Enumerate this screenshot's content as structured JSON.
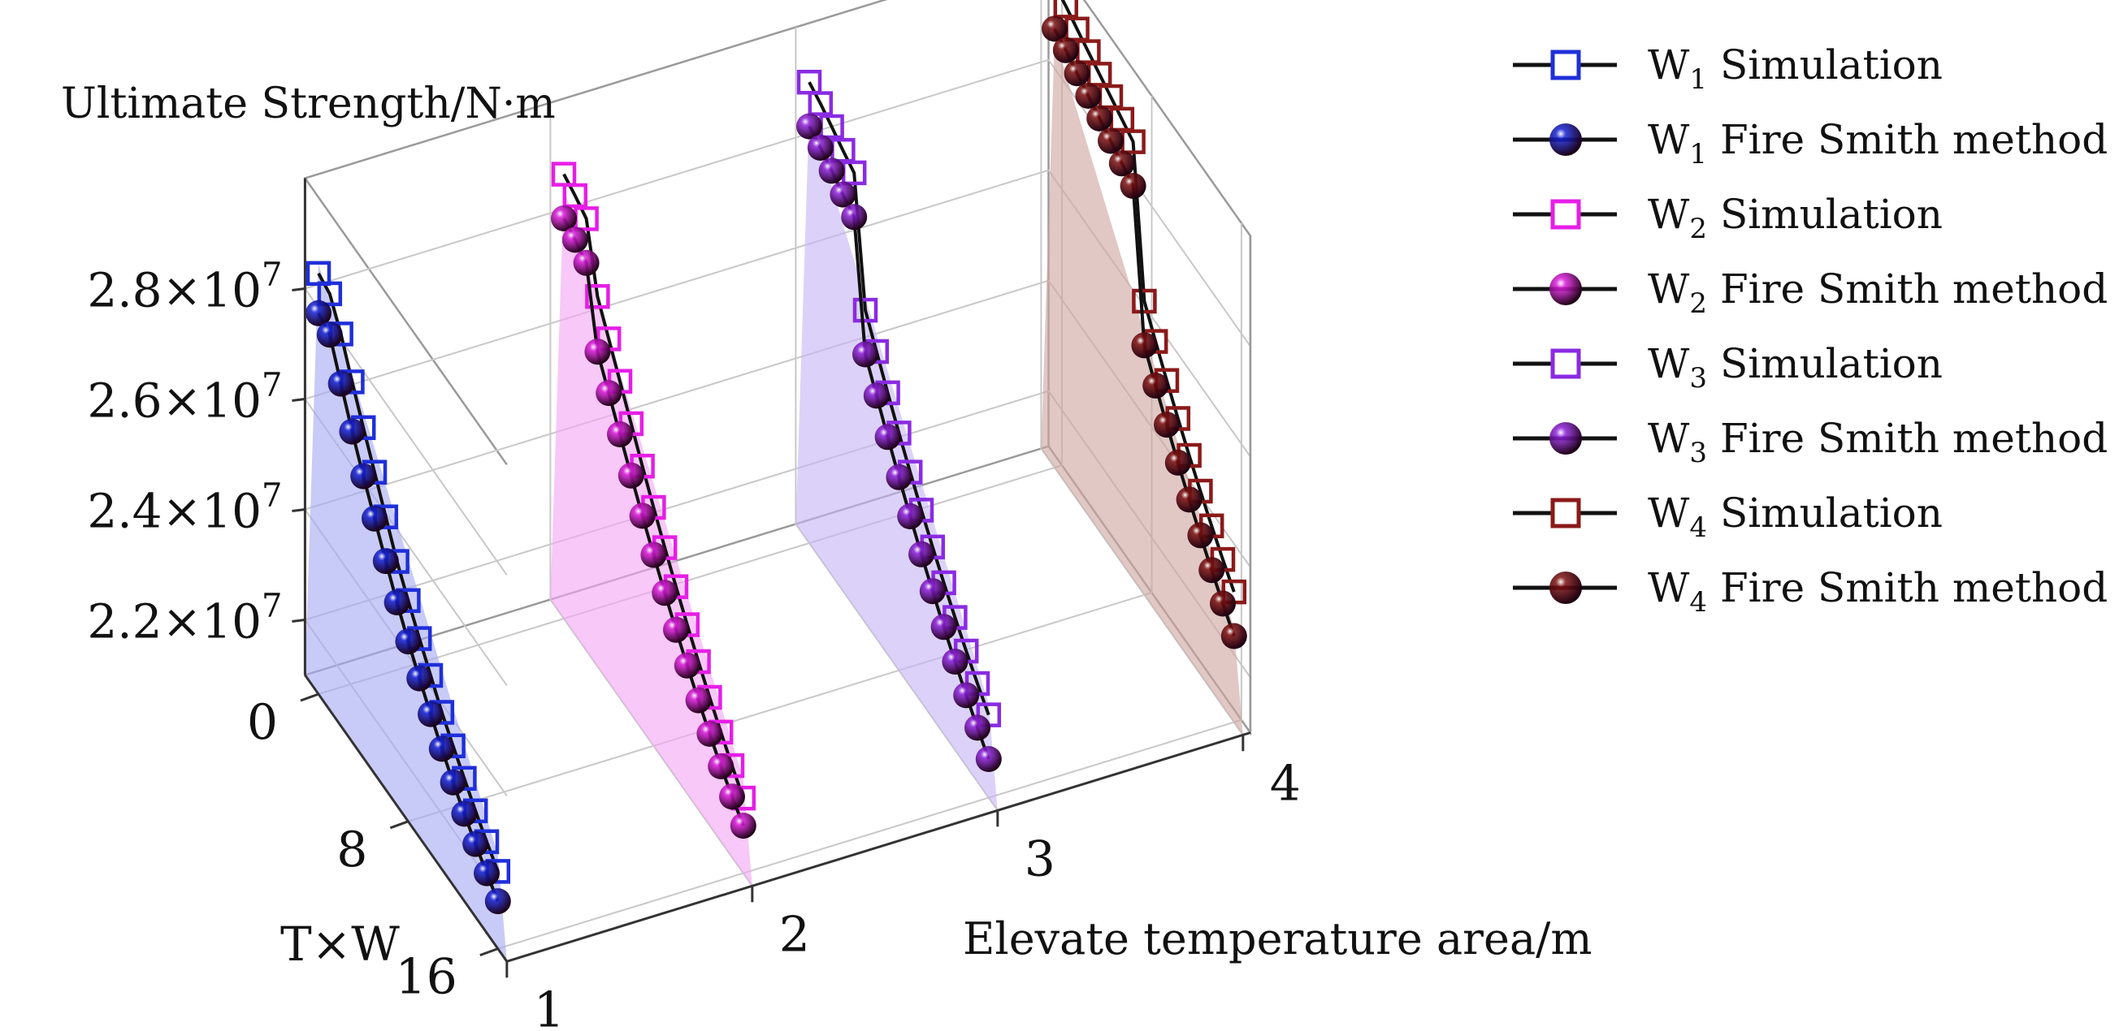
{
  "chart_data": {
    "type": "line",
    "projection": "3d",
    "z_label": "Ultimate Strength/N·m",
    "y_label": "T×W",
    "x_label": "Elevate temperature area/m",
    "z_ticks": [
      {
        "value": 22000000.0,
        "mantissa": "2.2×10",
        "exponent": "7"
      },
      {
        "value": 24000000.0,
        "mantissa": "2.4×10",
        "exponent": "7"
      },
      {
        "value": 26000000.0,
        "mantissa": "2.6×10",
        "exponent": "7"
      },
      {
        "value": 28000000.0,
        "mantissa": "2.8×10",
        "exponent": "7"
      }
    ],
    "y_ticks": [
      0,
      8,
      16
    ],
    "x_ticks": [
      1,
      2,
      3,
      4
    ],
    "z_range": [
      21000000.0,
      30000000.0
    ],
    "y_range": [
      0,
      16
    ],
    "x_range": [
      1,
      4
    ],
    "series": [
      {
        "name": "W1 Simulation",
        "label_main": "W",
        "label_sub": "1",
        "label_rest": " Simulation",
        "marker": "square",
        "color": "#1f2fd9",
        "plane_color": "#a7aaf2",
        "x": 1,
        "t": [
          0,
          1,
          2,
          3,
          4,
          5,
          6,
          7,
          8,
          9,
          10,
          11,
          12,
          13,
          14,
          15,
          16
        ],
        "values": [
          28.62,
          28.54,
          28.1,
          27.52,
          26.98,
          26.46,
          25.94,
          25.42,
          25.0,
          24.6,
          24.22,
          23.84,
          23.52,
          23.22,
          22.92,
          22.65,
          22.4
        ]
      },
      {
        "name": "W1 Fire Smith method",
        "label_main": "W",
        "label_sub": "1",
        "label_rest": " Fire Smith method",
        "marker": "sphere",
        "color": "#1420d2",
        "plane_color": "#a7aaf2",
        "x": 1,
        "t": [
          0,
          1,
          2,
          3,
          4,
          5,
          6,
          7,
          8,
          9,
          10,
          11,
          12,
          13,
          14,
          15,
          16
        ],
        "values": [
          27.9,
          27.8,
          27.2,
          26.62,
          26.1,
          25.62,
          25.14,
          24.68,
          24.26,
          23.88,
          23.52,
          23.18,
          22.86,
          22.58,
          22.32,
          22.08,
          21.86
        ]
      },
      {
        "name": "W2 Simulation",
        "label_main": "W",
        "label_sub": "2",
        "label_rest": " Simulation",
        "marker": "square",
        "color": "#e61ee6",
        "plane_color": "#f3a7f3",
        "x": 2,
        "t": [
          0,
          1,
          2,
          3,
          4,
          5,
          6,
          7,
          8,
          9,
          10,
          11,
          12,
          13,
          14,
          15,
          16
        ],
        "values": [
          29.05,
          28.95,
          28.82,
          27.7,
          27.22,
          26.74,
          26.26,
          25.78,
          25.32,
          24.88,
          24.46,
          24.06,
          23.68,
          23.32,
          22.98,
          22.66,
          22.36
        ]
      },
      {
        "name": "W2 Fire Smith method",
        "label_main": "W",
        "label_sub": "2",
        "label_rest": " Fire Smith method",
        "marker": "sphere",
        "color": "#d81bd8",
        "plane_color": "#f3a7f3",
        "x": 2,
        "t": [
          0,
          1,
          2,
          3,
          4,
          5,
          6,
          7,
          8,
          9,
          10,
          11,
          12,
          13,
          14,
          15,
          16
        ],
        "values": [
          28.25,
          28.15,
          28.02,
          26.7,
          26.24,
          25.78,
          25.32,
          24.88,
          24.46,
          24.06,
          23.68,
          23.32,
          22.98,
          22.66,
          22.36,
          22.1,
          21.86
        ]
      },
      {
        "name": "W3 Simulation",
        "label_main": "W",
        "label_sub": "3",
        "label_rest": " Simulation",
        "marker": "square",
        "color": "#8a2be2",
        "plane_color": "#c6b6f6",
        "x": 3,
        "t": [
          0,
          1,
          2,
          3,
          4,
          5,
          6,
          7,
          8,
          9,
          10,
          11,
          12,
          13,
          14,
          15,
          16
        ],
        "values": [
          29.35,
          29.25,
          29.12,
          28.98,
          28.86,
          26.66,
          26.2,
          25.74,
          25.3,
          24.88,
          24.48,
          24.1,
          23.74,
          23.4,
          23.08,
          22.78,
          22.5
        ]
      },
      {
        "name": "W3 Fire Smith method",
        "label_main": "W",
        "label_sub": "3",
        "label_rest": " Fire Smith method",
        "marker": "sphere",
        "color": "#8c1fd8",
        "plane_color": "#c6b6f6",
        "x": 3,
        "t": [
          0,
          1,
          2,
          3,
          4,
          5,
          6,
          7,
          8,
          9,
          10,
          11,
          12,
          13,
          14,
          15,
          16
        ],
        "values": [
          28.55,
          28.45,
          28.32,
          28.18,
          28.06,
          25.86,
          25.4,
          24.94,
          24.5,
          24.08,
          23.68,
          23.3,
          22.94,
          22.6,
          22.28,
          21.98,
          21.7
        ]
      },
      {
        "name": "W4 Simulation",
        "label_main": "W",
        "label_sub": "4",
        "label_rest": " Simulation",
        "marker": "square",
        "color": "#8b1a1a",
        "plane_color": "#cfa6a2",
        "x": 4,
        "t": [
          0,
          1,
          2,
          3,
          4,
          5,
          6,
          7,
          8,
          9,
          10,
          11,
          12,
          13,
          14,
          15,
          16
        ],
        "values": [
          29.75,
          29.65,
          29.52,
          29.4,
          29.28,
          29.16,
          29.04,
          28.92,
          26.32,
          25.88,
          25.46,
          25.06,
          24.68,
          24.32,
          23.98,
          23.66,
          23.36
        ]
      },
      {
        "name": "W4 Fire Smith method",
        "label_main": "W",
        "label_sub": "4",
        "label_rest": " Fire Smith method",
        "marker": "sphere",
        "color": "#7a0f0f",
        "plane_color": "#cfa6a2",
        "x": 4,
        "t": [
          0,
          1,
          2,
          3,
          4,
          5,
          6,
          7,
          8,
          9,
          10,
          11,
          12,
          13,
          14,
          15,
          16
        ],
        "values": [
          28.95,
          28.85,
          28.72,
          28.6,
          28.48,
          28.36,
          28.24,
          28.12,
          25.52,
          25.08,
          24.66,
          24.26,
          23.88,
          23.52,
          23.18,
          22.86,
          22.56
        ]
      }
    ],
    "legend": "right"
  }
}
